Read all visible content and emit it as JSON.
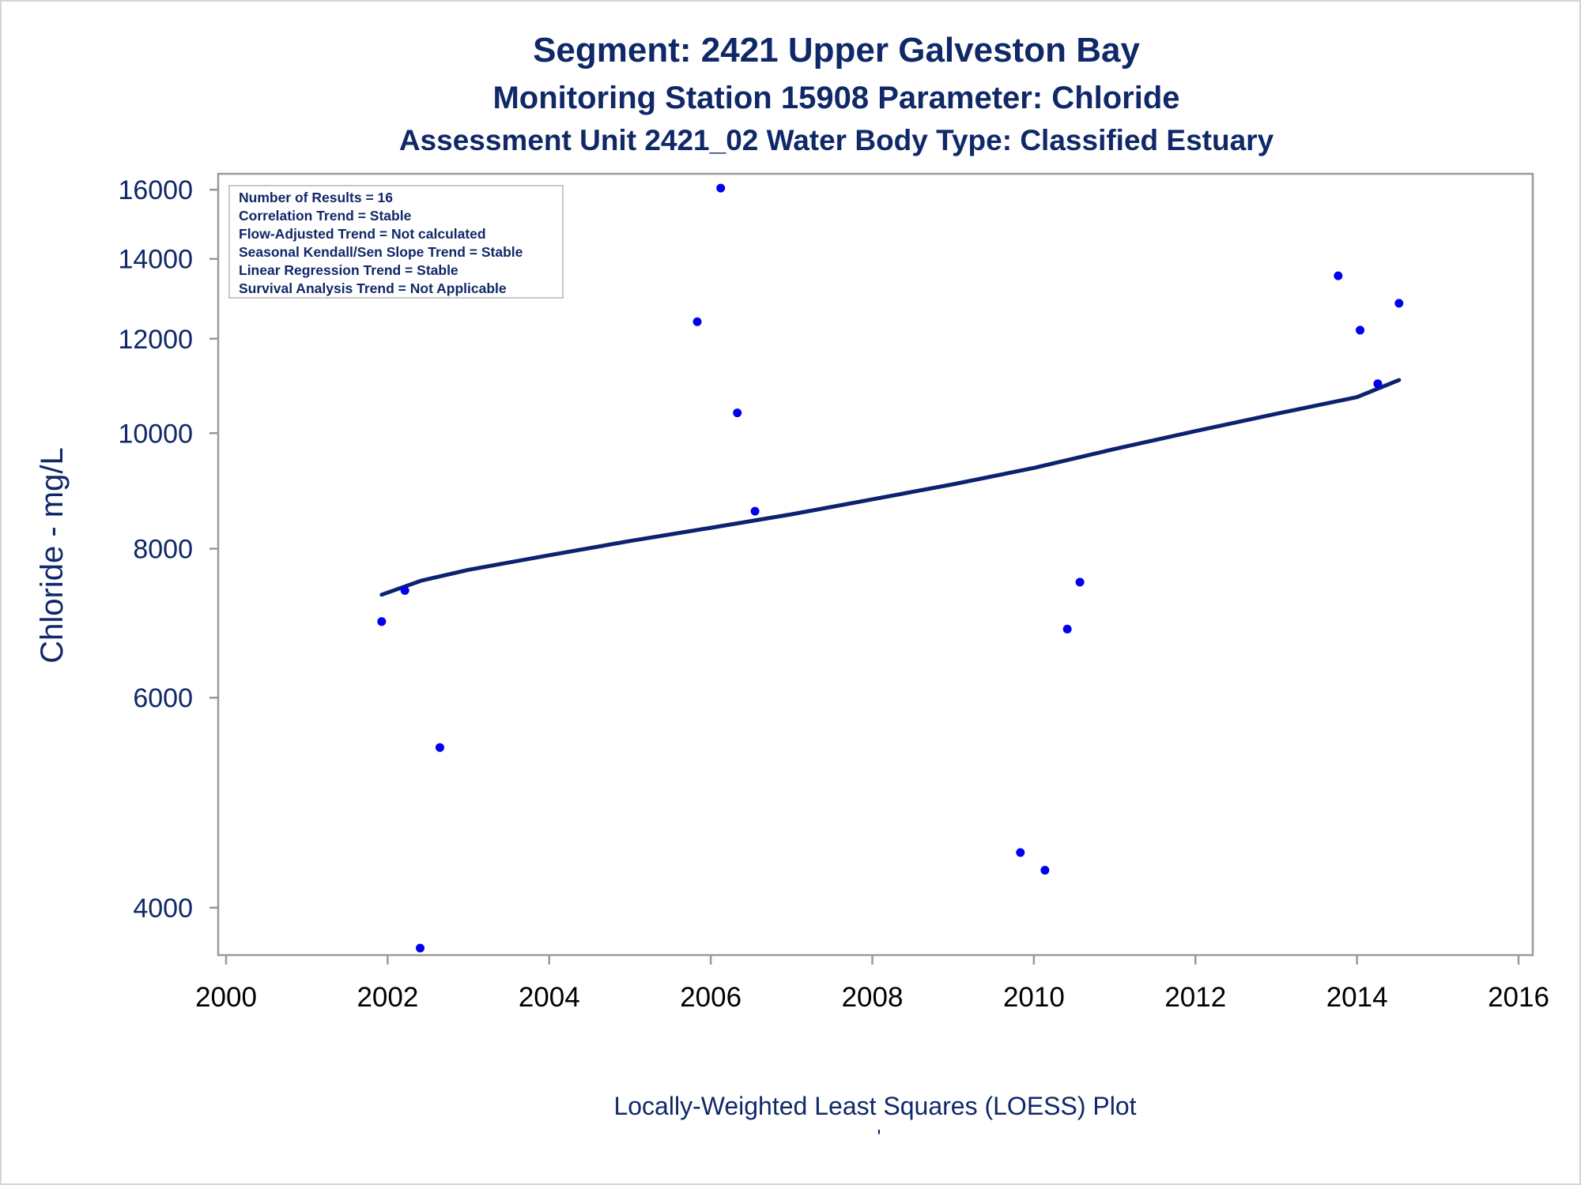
{
  "chart_data": {
    "type": "scatter",
    "title": "Segment: 2421  Upper Galveston Bay",
    "subtitle": "Monitoring Station 15908 Parameter: Chloride",
    "subtitle2": "Assessment Unit 2421_02   Water Body Type: Classified Estuary",
    "ylabel": "Chloride - mg/L",
    "xlabel": "",
    "footnote": "Locally-Weighted Least Squares (LOESS) Plot",
    "footnote_mark": "'",
    "y_scale": "log",
    "xlim": [
      2000,
      2016
    ],
    "ylim": [
      3650,
      16500
    ],
    "x_ticks": [
      "2000",
      "2002",
      "2004",
      "2006",
      "2008",
      "2010",
      "2012",
      "2014",
      "2016"
    ],
    "y_ticks": [
      "4000",
      "6000",
      "8000",
      "10000",
      "12000",
      "14000",
      "16000"
    ],
    "grid": false,
    "legend_position": "top-left",
    "stats_box": [
      "Number of Results = 16",
      "Correlation Trend = Stable",
      "Flow-Adjusted Trend = Not calculated",
      "Seasonal Kendall/Sen Slope Trend = Stable",
      "Linear Regression Trend = Stable",
      "Survival Analysis Trend = Not Applicable"
    ],
    "points": [
      {
        "x": "2001-12-05",
        "y": 6950
      },
      {
        "x": "2002-03-20",
        "y": 7380
      },
      {
        "x": "2002-05-28",
        "y": 3700
      },
      {
        "x": "2002-08-25",
        "y": 5450
      },
      {
        "x": "2005-11-01",
        "y": 12400
      },
      {
        "x": "2006-02-15",
        "y": 16050
      },
      {
        "x": "2006-05-01",
        "y": 10400
      },
      {
        "x": "2006-07-20",
        "y": 8600
      },
      {
        "x": "2009-11-01",
        "y": 4450
      },
      {
        "x": "2010-02-20",
        "y": 4300
      },
      {
        "x": "2010-06-01",
        "y": 6850
      },
      {
        "x": "2010-07-28",
        "y": 7500
      },
      {
        "x": "2013-10-08",
        "y": 13550
      },
      {
        "x": "2014-01-15",
        "y": 12200
      },
      {
        "x": "2014-04-05",
        "y": 11000
      },
      {
        "x": "2014-07-10",
        "y": 12850
      }
    ],
    "series": [
      {
        "type": "loess",
        "x": [
          "2001-12-05",
          "2002-06-01",
          "2003-01-01",
          "2004-01-01",
          "2005-01-01",
          "2006-01-01",
          "2007-01-01",
          "2008-01-01",
          "2009-01-01",
          "2010-01-01",
          "2011-01-01",
          "2012-01-01",
          "2013-01-01",
          "2014-01-01",
          "2014-07-10"
        ],
        "y": [
          7320,
          7520,
          7680,
          7900,
          8120,
          8330,
          8550,
          8800,
          9060,
          9350,
          9700,
          10040,
          10380,
          10720,
          11080
        ]
      }
    ],
    "colors": {
      "title": "#102868",
      "axis_text": "#102868",
      "points": "#0000ee",
      "loess_line": "#0c2270",
      "frame": "#999999",
      "stats_border": "#c8c8c8"
    }
  }
}
